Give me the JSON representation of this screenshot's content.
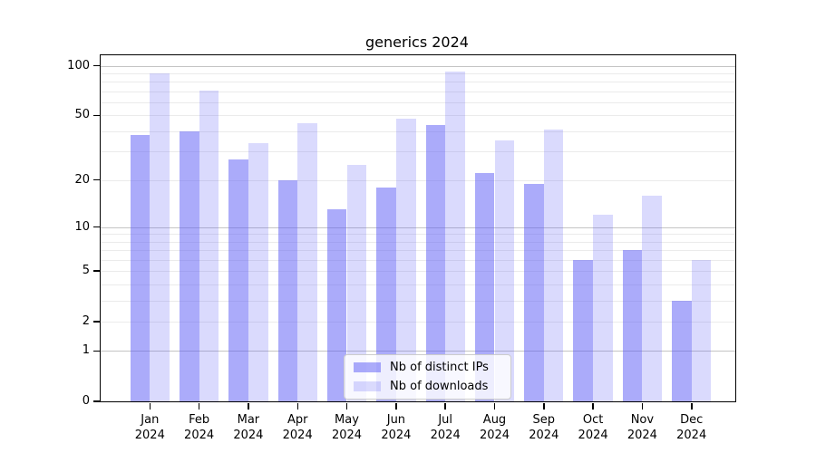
{
  "chart_data": {
    "type": "bar",
    "title": "generics 2024",
    "categories": [
      "Jan 2024",
      "Feb 2024",
      "Mar 2024",
      "Apr 2024",
      "May 2024",
      "Jun 2024",
      "Jul 2024",
      "Aug 2024",
      "Sep 2024",
      "Oct 2024",
      "Nov 2024",
      "Dec 2024"
    ],
    "series": [
      {
        "key": "distinct-ips",
        "name": "Nb of distinct IPs",
        "color": "rgba(88,88,245,0.5)",
        "values": [
          38,
          40,
          27,
          20,
          13,
          18,
          44,
          22,
          19,
          6,
          7,
          3
        ]
      },
      {
        "key": "downloads",
        "name": "Nb of downloads",
        "color": "rgba(88,88,245,0.22)",
        "values": [
          90,
          71,
          34,
          45,
          25,
          48,
          92,
          35,
          41,
          12,
          16,
          6
        ]
      }
    ],
    "xlabel": "",
    "ylabel": "",
    "yticks": [
      100,
      50,
      20,
      10,
      5,
      2,
      1,
      0
    ],
    "scale": "log10(1+v)",
    "ylim": [
      0,
      115
    ],
    "grid": {
      "major": [
        1,
        10,
        100
      ],
      "minor": [
        2,
        3,
        4,
        5,
        6,
        7,
        8,
        9,
        20,
        30,
        40,
        50,
        60,
        70,
        80,
        90
      ]
    },
    "legend_position": "lower center",
    "colors": {
      "background": "#ffffff",
      "spine": "#000000",
      "grid_major": "#c4c4c4",
      "grid_minor": "#ebebeb",
      "text": "#000000"
    }
  }
}
